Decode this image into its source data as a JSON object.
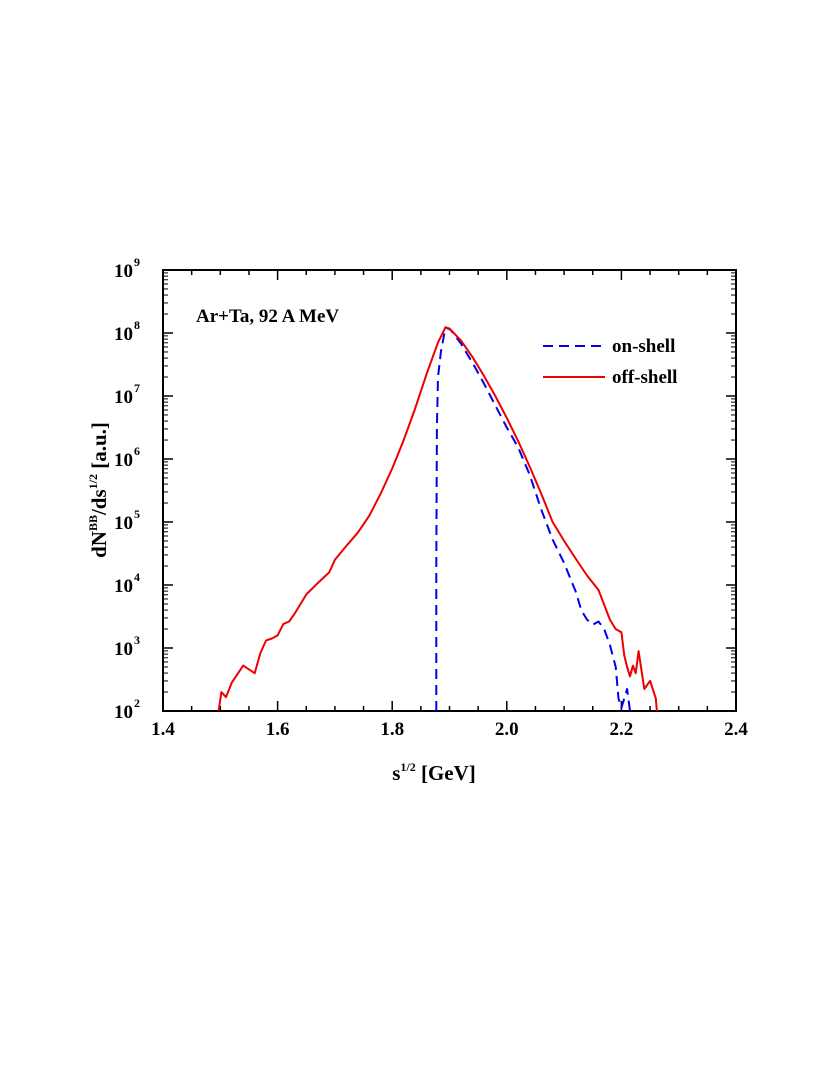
{
  "chart_data": {
    "type": "line",
    "title": "",
    "annotation": "Ar+Ta,  92 A MeV",
    "xlabel": {
      "base": "s",
      "sup": "1/2",
      "rest": " [GeV]"
    },
    "ylabel": {
      "p1": "dN",
      "sup1": "BB",
      "p2": "/ds",
      "sup2": "1/2",
      "p3": " [a.u.]"
    },
    "xlim": [
      1.4,
      2.4
    ],
    "ylim_log10": [
      2,
      9
    ],
    "yscale": "log",
    "x_ticks": [
      {
        "value": 1.4,
        "label": "1.4"
      },
      {
        "value": 1.6,
        "label": "1.6"
      },
      {
        "value": 1.8,
        "label": "1.8"
      },
      {
        "value": 2.0,
        "label": "2.0"
      },
      {
        "value": 2.2,
        "label": "2.2"
      },
      {
        "value": 2.4,
        "label": "2.4"
      }
    ],
    "y_ticks": [
      {
        "exp": 2,
        "base": "10",
        "sup": "2"
      },
      {
        "exp": 3,
        "base": "10",
        "sup": "3"
      },
      {
        "exp": 4,
        "base": "10",
        "sup": "4"
      },
      {
        "exp": 5,
        "base": "10",
        "sup": "5"
      },
      {
        "exp": 6,
        "base": "10",
        "sup": "6"
      },
      {
        "exp": 7,
        "base": "10",
        "sup": "7"
      },
      {
        "exp": 8,
        "base": "10",
        "sup": "8"
      },
      {
        "exp": 9,
        "base": "10",
        "sup": "9"
      }
    ],
    "legend_position": "top-right",
    "series": [
      {
        "name": "on-shell",
        "color": "#0000ee",
        "dash": true,
        "points_log10": [
          [
            1.877,
            2.0
          ],
          [
            1.877,
            2.5
          ],
          [
            1.877,
            4.3
          ],
          [
            1.878,
            6.5
          ],
          [
            1.88,
            7.3
          ],
          [
            1.885,
            7.7
          ],
          [
            1.893,
            8.09
          ],
          [
            1.902,
            8.05
          ],
          [
            1.92,
            7.83
          ],
          [
            1.94,
            7.53
          ],
          [
            1.96,
            7.2
          ],
          [
            1.98,
            6.85
          ],
          [
            2.0,
            6.5
          ],
          [
            2.02,
            6.18
          ],
          [
            2.04,
            5.75
          ],
          [
            2.06,
            5.2
          ],
          [
            2.08,
            4.72
          ],
          [
            2.1,
            4.35
          ],
          [
            2.12,
            3.9
          ],
          [
            2.13,
            3.6
          ],
          [
            2.14,
            3.45
          ],
          [
            2.15,
            3.37
          ],
          [
            2.16,
            3.42
          ],
          [
            2.17,
            3.3
          ],
          [
            2.18,
            3.05
          ],
          [
            2.19,
            2.7
          ],
          [
            2.195,
            2.2
          ],
          [
            2.2,
            2.05
          ],
          [
            2.21,
            2.35
          ],
          [
            2.215,
            2.0
          ]
        ]
      },
      {
        "name": "off-shell",
        "color": "#ee0000",
        "dash": false,
        "points_log10": [
          [
            1.497,
            2.0
          ],
          [
            1.502,
            2.3
          ],
          [
            1.51,
            2.22
          ],
          [
            1.52,
            2.45
          ],
          [
            1.54,
            2.72
          ],
          [
            1.56,
            2.6
          ],
          [
            1.57,
            2.92
          ],
          [
            1.58,
            3.12
          ],
          [
            1.59,
            3.15
          ],
          [
            1.6,
            3.2
          ],
          [
            1.61,
            3.38
          ],
          [
            1.62,
            3.42
          ],
          [
            1.63,
            3.55
          ],
          [
            1.65,
            3.85
          ],
          [
            1.67,
            4.03
          ],
          [
            1.69,
            4.2
          ],
          [
            1.7,
            4.4
          ],
          [
            1.72,
            4.62
          ],
          [
            1.74,
            4.83
          ],
          [
            1.76,
            5.1
          ],
          [
            1.78,
            5.45
          ],
          [
            1.8,
            5.85
          ],
          [
            1.82,
            6.3
          ],
          [
            1.84,
            6.8
          ],
          [
            1.86,
            7.35
          ],
          [
            1.88,
            7.85
          ],
          [
            1.893,
            8.09
          ],
          [
            1.9,
            8.07
          ],
          [
            1.92,
            7.88
          ],
          [
            1.94,
            7.62
          ],
          [
            1.96,
            7.32
          ],
          [
            1.98,
            7.0
          ],
          [
            2.0,
            6.65
          ],
          [
            2.02,
            6.28
          ],
          [
            2.04,
            5.88
          ],
          [
            2.06,
            5.45
          ],
          [
            2.08,
            5.0
          ],
          [
            2.1,
            4.7
          ],
          [
            2.12,
            4.42
          ],
          [
            2.14,
            4.15
          ],
          [
            2.16,
            3.92
          ],
          [
            2.18,
            3.45
          ],
          [
            2.19,
            3.3
          ],
          [
            2.2,
            3.25
          ],
          [
            2.205,
            2.88
          ],
          [
            2.21,
            2.7
          ],
          [
            2.215,
            2.55
          ],
          [
            2.22,
            2.72
          ],
          [
            2.225,
            2.6
          ],
          [
            2.23,
            2.95
          ],
          [
            2.24,
            2.35
          ],
          [
            2.25,
            2.48
          ],
          [
            2.26,
            2.2
          ],
          [
            2.262,
            2.0
          ]
        ]
      }
    ]
  }
}
